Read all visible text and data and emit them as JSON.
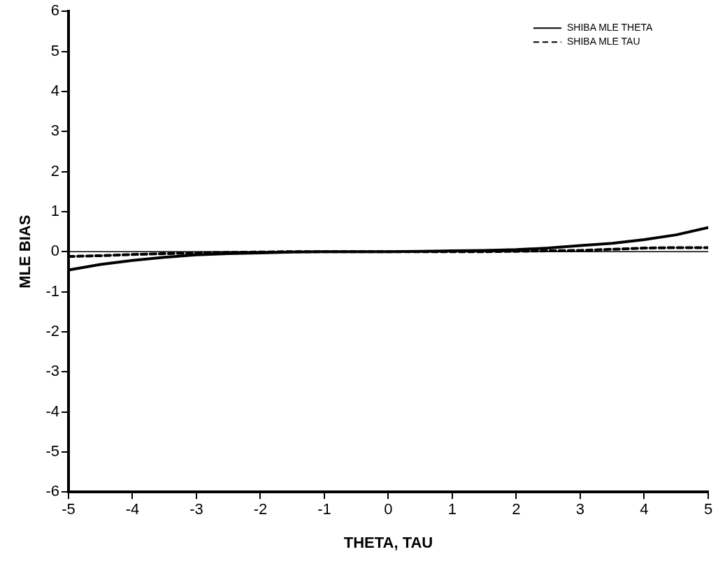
{
  "chart_data": {
    "type": "line",
    "xlabel": "THETA, TAU",
    "ylabel": "MLE BIAS",
    "x": [
      -5,
      -4.5,
      -4,
      -3.5,
      -3,
      -2.5,
      -2,
      -1.5,
      -1,
      -0.5,
      0,
      0.5,
      1,
      1.5,
      2,
      2.5,
      3,
      3.5,
      4,
      4.5,
      5
    ],
    "series": [
      {
        "name": "SHIBA MLE THETA",
        "color": "#000000",
        "line_style": "solid",
        "values": [
          -0.46,
          -0.32,
          -0.22,
          -0.14,
          -0.08,
          -0.05,
          -0.03,
          -0.01,
          0,
          0,
          0,
          0.01,
          0.02,
          0.03,
          0.05,
          0.09,
          0.15,
          0.21,
          0.3,
          0.42,
          0.6
        ]
      },
      {
        "name": "SHIBA MLE TAU",
        "color": "#000000",
        "line_style": "dashed",
        "values": [
          -0.12,
          -0.1,
          -0.07,
          -0.05,
          -0.03,
          -0.02,
          -0.01,
          0,
          0,
          0,
          0,
          0,
          0,
          0,
          0.01,
          0.02,
          0.03,
          0.06,
          0.09,
          0.1,
          0.1
        ]
      }
    ],
    "xlim": [
      -5,
      5
    ],
    "xticks": [
      -5,
      -4,
      -3,
      -2,
      -1,
      0,
      1,
      2,
      3,
      4,
      5
    ],
    "ylim": [
      -6,
      6
    ],
    "yticks": [
      -6,
      -5,
      -4,
      -3,
      -2,
      -1,
      0,
      1,
      2,
      3,
      4,
      5,
      6
    ],
    "ref_lines": [
      {
        "axis": "y",
        "value": 0,
        "color": "#000000"
      }
    ],
    "grid": false,
    "legend": "top right",
    "marker": "none"
  }
}
